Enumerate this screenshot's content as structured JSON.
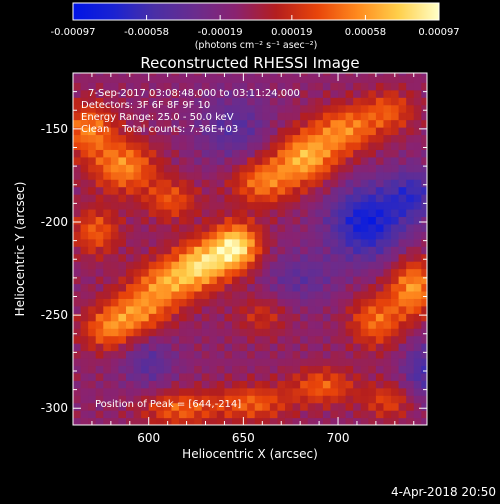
{
  "colorbar": {
    "ticks": [
      "-0.00097",
      "-0.00058",
      "-0.00019",
      "0.00019",
      "0.00058",
      "0.00097"
    ],
    "tick_values": [
      -0.00097,
      -0.00058,
      -0.00019,
      0.00019,
      0.00058,
      0.00097
    ],
    "range": [
      -0.00097,
      0.00097
    ],
    "colors": [
      "#0014e6",
      "#1a23d2",
      "#4a2fa6",
      "#6a2c8e",
      "#8a2270",
      "#b41e1e",
      "#e8440a",
      "#ff8a1e",
      "#ffcf4a",
      "#ffffc8"
    ]
  },
  "chart_data": {
    "type": "heatmap",
    "title": "Reconstructed RHESSI Image",
    "xlabel": "Heliocentric X (arcsec)",
    "ylabel": "Heliocentric Y (arcsec)",
    "xlim": [
      560,
      747
    ],
    "ylim": [
      -309,
      -120
    ],
    "xticks": [
      600,
      650,
      700
    ],
    "yticks": [
      -150,
      -200,
      -250,
      -300
    ],
    "grid": false,
    "colorbar_label": "(photons cm⁻² s⁻¹ asec⁻²)",
    "annotations": {
      "time_range": "7-Sep-2017 03:08:48.000 to 03:11:24.000",
      "detectors": "Detectors: 3F 6F 8F 9F 10",
      "energy_range": "Energy Range: 25.0 - 50.0 keV",
      "method": "Clean    Total counts: 7.36E+03",
      "peak": "Position of Peak = [644,-214]"
    },
    "peak_position": [
      644,
      -214
    ],
    "bright_structures": [
      {
        "x": 646,
        "y": -213,
        "amp": 1.0,
        "sx": 9,
        "sy": 9
      },
      {
        "x": 628,
        "y": -222,
        "amp": 0.8,
        "sx": 10,
        "sy": 9
      },
      {
        "x": 610,
        "y": -232,
        "amp": 0.65,
        "sx": 12,
        "sy": 9
      },
      {
        "x": 594,
        "y": -248,
        "amp": 0.6,
        "sx": 12,
        "sy": 9
      },
      {
        "x": 578,
        "y": -258,
        "amp": 0.5,
        "sx": 10,
        "sy": 8
      },
      {
        "x": 587,
        "y": -170,
        "amp": 0.65,
        "sx": 12,
        "sy": 10
      },
      {
        "x": 568,
        "y": -150,
        "amp": 0.6,
        "sx": 10,
        "sy": 10
      },
      {
        "x": 612,
        "y": -188,
        "amp": 0.45,
        "sx": 10,
        "sy": 8
      },
      {
        "x": 660,
        "y": -178,
        "amp": 0.6,
        "sx": 12,
        "sy": 9
      },
      {
        "x": 683,
        "y": -165,
        "amp": 0.75,
        "sx": 12,
        "sy": 10
      },
      {
        "x": 704,
        "y": -150,
        "amp": 0.6,
        "sx": 12,
        "sy": 9
      },
      {
        "x": 727,
        "y": -140,
        "amp": 0.45,
        "sx": 10,
        "sy": 8
      },
      {
        "x": 720,
        "y": -253,
        "amp": 0.55,
        "sx": 10,
        "sy": 10
      },
      {
        "x": 740,
        "y": -235,
        "amp": 0.7,
        "sx": 9,
        "sy": 11
      },
      {
        "x": 616,
        "y": -300,
        "amp": 0.5,
        "sx": 14,
        "sy": 7
      },
      {
        "x": 655,
        "y": -297,
        "amp": 0.5,
        "sx": 14,
        "sy": 7
      },
      {
        "x": 692,
        "y": -288,
        "amp": 0.5,
        "sx": 12,
        "sy": 7
      },
      {
        "x": 727,
        "y": -296,
        "amp": 0.4,
        "sx": 10,
        "sy": 7
      },
      {
        "x": 572,
        "y": -205,
        "amp": 0.5,
        "sx": 9,
        "sy": 9
      },
      {
        "x": 660,
        "y": -250,
        "amp": 0.3,
        "sx": 10,
        "sy": 8
      }
    ],
    "negative_structures": [
      {
        "x": 715,
        "y": -200,
        "amp": -0.75,
        "sx": 14,
        "sy": 14
      },
      {
        "x": 740,
        "y": -185,
        "amp": -0.5,
        "sx": 10,
        "sy": 10
      },
      {
        "x": 745,
        "y": -280,
        "amp": -0.45,
        "sx": 8,
        "sy": 12
      },
      {
        "x": 645,
        "y": -150,
        "amp": -0.35,
        "sx": 14,
        "sy": 14
      },
      {
        "x": 600,
        "y": -275,
        "amp": -0.35,
        "sx": 10,
        "sy": 10
      },
      {
        "x": 680,
        "y": -230,
        "amp": -0.3,
        "sx": 14,
        "sy": 10
      }
    ]
  },
  "footer": {
    "timestamp": "4-Apr-2018 20:50"
  }
}
